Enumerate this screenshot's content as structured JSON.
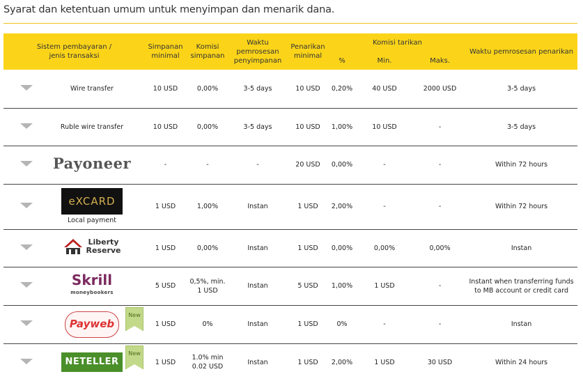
{
  "page": {
    "title": "Syarat dan ketentuan umum untuk menyimpan dan menarik dana."
  },
  "header": {
    "payment_system": "Sistem pembayaran / jenis transaksi",
    "min_deposit": "Simpanan minimal",
    "deposit_fee": "Komisi simpanan",
    "deposit_time": "Waktu pemrosesan penyimpanan",
    "min_withdrawal": "Penarikan minimal",
    "withdrawal_fee_group": "Komisi tarikan",
    "pct": "%",
    "min": "Min.",
    "max": "Maks.",
    "withdrawal_time": "Waktu pemrosesan penarikan"
  },
  "rows": [
    {
      "name": "Wire transfer",
      "logo_text": "",
      "min_dep": "10 USD",
      "dep_fee": "0,00%",
      "dep_time": "3-5 days",
      "min_wd": "10 USD",
      "pct": "0,20%",
      "min": "40 USD",
      "max": "2000 USD",
      "wd_time": "3-5 days",
      "badge": ""
    },
    {
      "name": "Ruble wire transfer",
      "logo_text": "",
      "min_dep": "10 USD",
      "dep_fee": "0,00%",
      "dep_time": "3-5 days",
      "min_wd": "10 USD",
      "pct": "1,00%",
      "min": "10 USD",
      "max": "-",
      "wd_time": "3-5 days",
      "badge": ""
    },
    {
      "name": "",
      "logo_text": "Payoneer",
      "min_dep": "-",
      "dep_fee": "-",
      "dep_time": "-",
      "min_wd": "20 USD",
      "pct": "0,00%",
      "min": "-",
      "max": "-",
      "wd_time": "Within 72 hours",
      "badge": ""
    },
    {
      "name": "Local payment",
      "logo_text": "eXCARD",
      "min_dep": "1 USD",
      "dep_fee": "1,00%",
      "dep_time": "Instan",
      "min_wd": "1 USD",
      "pct": "2,00%",
      "min": "-",
      "max": "-",
      "wd_time": "Within 72 hours",
      "badge": ""
    },
    {
      "name": "",
      "logo_text": "Liberty Reserve",
      "min_dep": "1 USD",
      "dep_fee": "0,00%",
      "dep_time": "Instan",
      "min_wd": "1 USD",
      "pct": "0,00%",
      "min": "0,00%",
      "max": "0,00%",
      "wd_time": "Instan",
      "badge": ""
    },
    {
      "name": "",
      "logo_text": "Skrill",
      "logo_sub": "moneybookers",
      "min_dep": "5 USD",
      "dep_fee": "0,5%, min. 1 USD",
      "dep_time": "Instan",
      "min_wd": "5 USD",
      "pct": "1,00%",
      "min": "1 USD",
      "max": "-",
      "wd_time": "Instant when transferring funds to MB account or credit card",
      "badge": ""
    },
    {
      "name": "",
      "logo_text": "Payweb",
      "min_dep": "1 USD",
      "dep_fee": "0%",
      "dep_time": "Instan",
      "min_wd": "1 USD",
      "pct": "0%",
      "min": "-",
      "max": "-",
      "wd_time": "Instan",
      "badge": "New"
    },
    {
      "name": "",
      "logo_text": "NETELLER",
      "min_dep": "1 USD",
      "dep_fee": "1.0% min 0.02 USD",
      "dep_time": "Instan",
      "min_wd": "1 USD",
      "pct": "2,00%",
      "min": "1 USD",
      "max": "30 USD",
      "wd_time": "Within 24 hours",
      "badge": "New"
    }
  ],
  "colors": {
    "header_bg": "#fbd419",
    "rule": "#f0c419"
  }
}
